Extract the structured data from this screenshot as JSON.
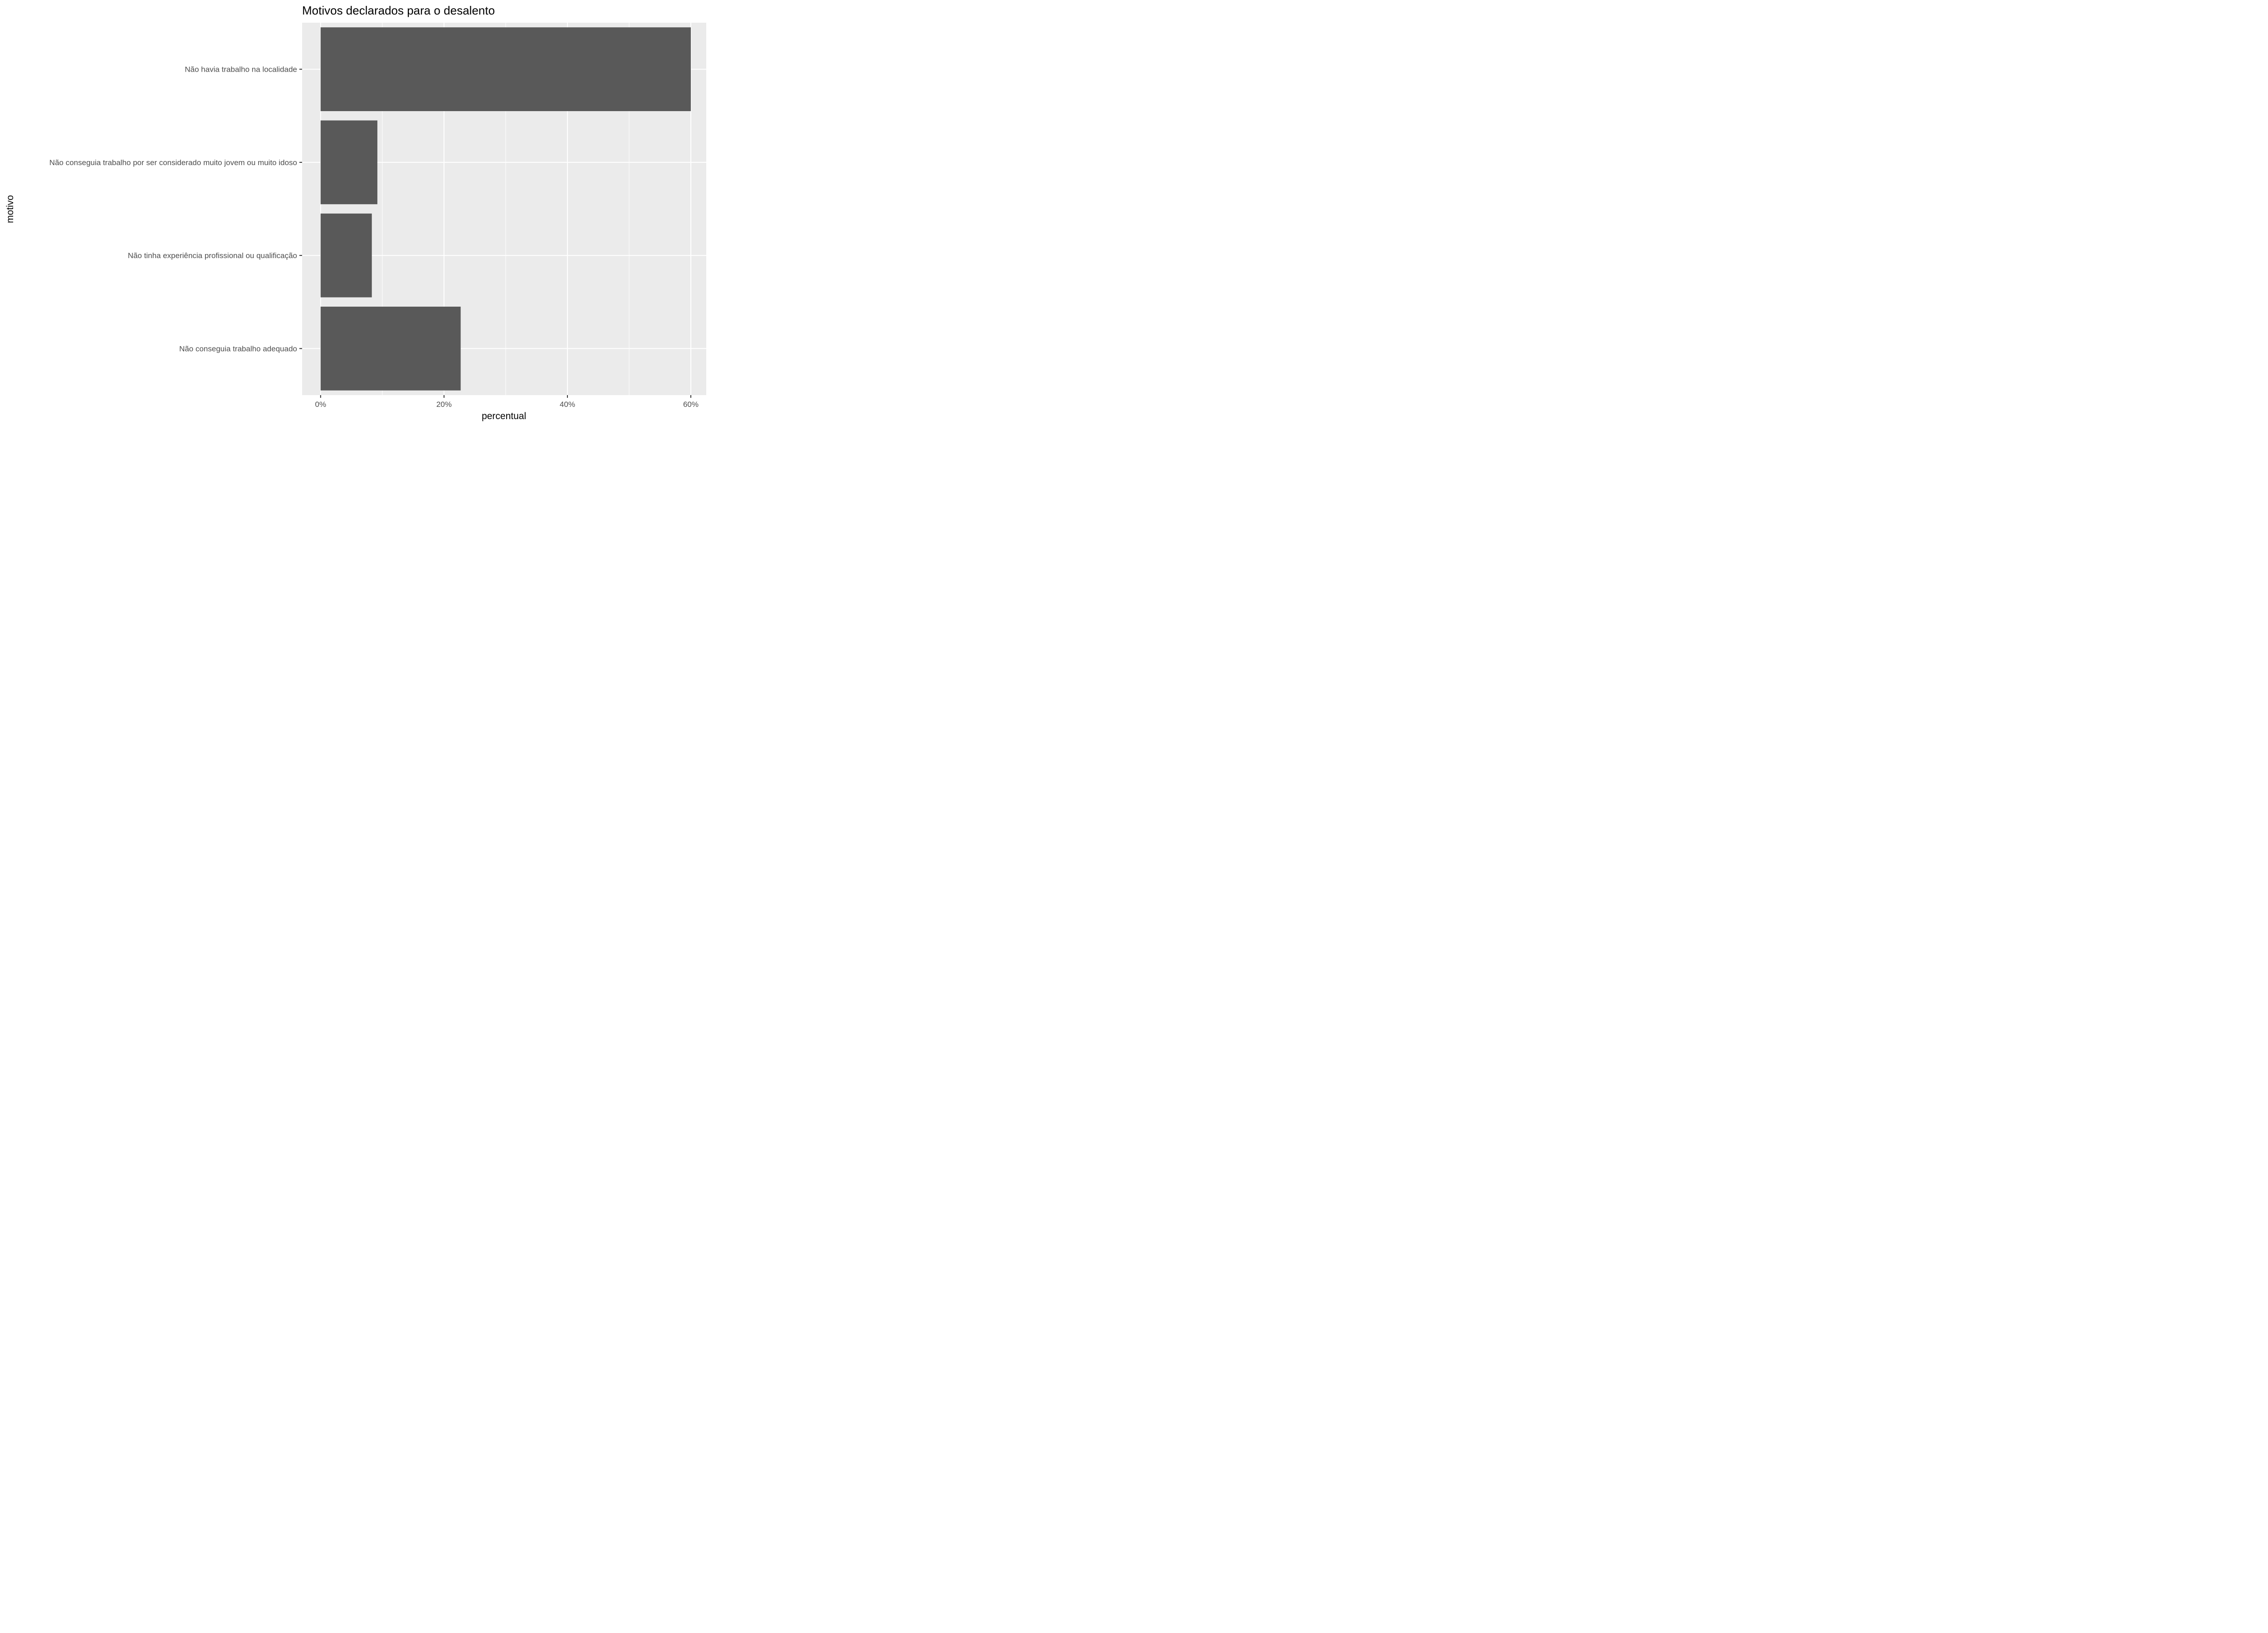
{
  "chart_data": {
    "type": "bar",
    "orientation": "horizontal",
    "title": "Motivos declarados para o desalento",
    "xlabel": "percentual",
    "ylabel": "motivo",
    "categories": [
      "Não havia trabalho na localidade",
      "Não conseguia trabalho por ser considerado muito jovem ou muito idoso",
      "Não tinha experiência profissional ou qualificação",
      "Não conseguia trabalho adequado"
    ],
    "values": [
      60.0,
      9.2,
      8.3,
      22.7
    ],
    "xlim": [
      -3,
      62.5
    ],
    "x_ticks": [
      0,
      20,
      40,
      60
    ],
    "x_tick_labels": [
      "0%",
      "20%",
      "40%",
      "60%"
    ],
    "grid": true,
    "colors": {
      "bar": "#595959",
      "panel": "#ebebeb",
      "grid": "#ffffff"
    }
  }
}
